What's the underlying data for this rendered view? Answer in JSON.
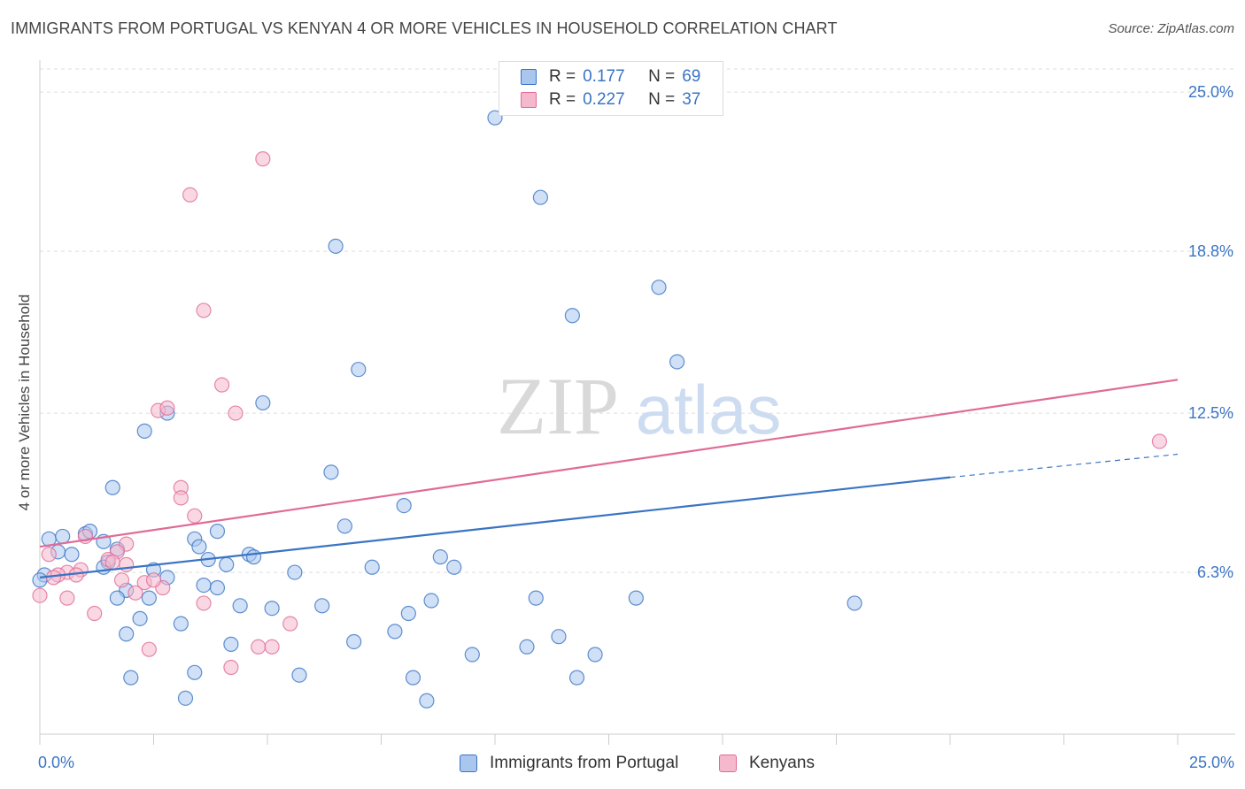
{
  "title": "IMMIGRANTS FROM PORTUGAL VS KENYAN 4 OR MORE VEHICLES IN HOUSEHOLD CORRELATION CHART",
  "source": "Source: ZipAtlas.com",
  "watermark": {
    "zip": "ZIP",
    "atlas": "atlas"
  },
  "colors": {
    "blue": "#3a74c4",
    "blue_fill": "#a9c6ef",
    "pink": "#e06b97",
    "pink_fill": "#f6b8cc",
    "grid": "#dddddd"
  },
  "legend": {
    "series": [
      {
        "name": "Immigrants from Portugal",
        "r_label": "R =",
        "r": "0.177",
        "n_label": "N =",
        "n": "69"
      },
      {
        "name": "Kenyans",
        "r_label": "R =",
        "r": "0.227",
        "n_label": "N =",
        "n": "37"
      }
    ]
  },
  "chart_data": {
    "type": "scatter",
    "title": "IMMIGRANTS FROM PORTUGAL VS KENYAN 4 OR MORE VEHICLES IN HOUSEHOLD CORRELATION CHART",
    "xlabel": "",
    "ylabel": "4 or more Vehicles in Household",
    "xlim": [
      0,
      25
    ],
    "ylim": [
      0,
      25.9
    ],
    "x_tick_labels": [
      "0.0%",
      "25.0%"
    ],
    "y_ticks": [
      6.3,
      12.5,
      18.8,
      25.0
    ],
    "y_tick_labels": [
      "6.3%",
      "12.5%",
      "18.8%",
      "25.0%"
    ],
    "grid": true,
    "series": [
      {
        "name": "Immigrants from Portugal",
        "points": [
          [
            10.0,
            24.0
          ],
          [
            11.0,
            20.9
          ],
          [
            6.5,
            19.0
          ],
          [
            13.6,
            17.4
          ],
          [
            11.7,
            16.3
          ],
          [
            14.0,
            14.5
          ],
          [
            7.0,
            14.2
          ],
          [
            4.9,
            12.9
          ],
          [
            2.8,
            12.5
          ],
          [
            2.3,
            11.8
          ],
          [
            6.4,
            10.2
          ],
          [
            1.6,
            9.6
          ],
          [
            8.0,
            8.9
          ],
          [
            6.7,
            8.1
          ],
          [
            0.2,
            7.6
          ],
          [
            0.5,
            7.7
          ],
          [
            1.0,
            7.8
          ],
          [
            1.1,
            7.9
          ],
          [
            3.4,
            7.6
          ],
          [
            3.9,
            7.9
          ],
          [
            1.4,
            7.5
          ],
          [
            3.5,
            7.3
          ],
          [
            1.7,
            7.2
          ],
          [
            0.4,
            7.1
          ],
          [
            0.7,
            7.0
          ],
          [
            4.6,
            7.0
          ],
          [
            4.7,
            6.9
          ],
          [
            8.8,
            6.9
          ],
          [
            1.5,
            6.7
          ],
          [
            3.7,
            6.8
          ],
          [
            4.1,
            6.6
          ],
          [
            1.4,
            6.5
          ],
          [
            7.3,
            6.5
          ],
          [
            9.1,
            6.5
          ],
          [
            2.5,
            6.4
          ],
          [
            5.6,
            6.3
          ],
          [
            0.1,
            6.2
          ],
          [
            2.8,
            6.1
          ],
          [
            3.6,
            5.8
          ],
          [
            3.9,
            5.7
          ],
          [
            1.9,
            5.6
          ],
          [
            2.4,
            5.3
          ],
          [
            1.7,
            5.3
          ],
          [
            8.6,
            5.2
          ],
          [
            10.9,
            5.3
          ],
          [
            13.1,
            5.3
          ],
          [
            17.9,
            5.1
          ],
          [
            4.4,
            5.0
          ],
          [
            6.2,
            5.0
          ],
          [
            5.1,
            4.9
          ],
          [
            8.1,
            4.7
          ],
          [
            2.2,
            4.5
          ],
          [
            3.1,
            4.3
          ],
          [
            1.9,
            3.9
          ],
          [
            7.8,
            4.0
          ],
          [
            11.4,
            3.8
          ],
          [
            6.9,
            3.6
          ],
          [
            4.2,
            3.5
          ],
          [
            10.7,
            3.4
          ],
          [
            9.5,
            3.1
          ],
          [
            12.2,
            3.1
          ],
          [
            3.4,
            2.4
          ],
          [
            5.7,
            2.3
          ],
          [
            2.0,
            2.2
          ],
          [
            8.2,
            2.2
          ],
          [
            11.8,
            2.2
          ],
          [
            3.2,
            1.4
          ],
          [
            8.5,
            1.3
          ],
          [
            0.0,
            6.0
          ]
        ]
      },
      {
        "name": "Kenyans",
        "points": [
          [
            4.9,
            22.4
          ],
          [
            3.3,
            21.0
          ],
          [
            3.6,
            16.5
          ],
          [
            4.0,
            13.6
          ],
          [
            2.6,
            12.6
          ],
          [
            2.8,
            12.7
          ],
          [
            4.3,
            12.5
          ],
          [
            3.1,
            9.6
          ],
          [
            3.1,
            9.2
          ],
          [
            3.4,
            8.5
          ],
          [
            24.6,
            11.4
          ],
          [
            1.0,
            7.7
          ],
          [
            1.9,
            7.4
          ],
          [
            0.2,
            7.0
          ],
          [
            1.7,
            7.1
          ],
          [
            1.5,
            6.8
          ],
          [
            1.6,
            6.7
          ],
          [
            1.9,
            6.6
          ],
          [
            0.9,
            6.4
          ],
          [
            0.6,
            6.3
          ],
          [
            0.4,
            6.2
          ],
          [
            1.8,
            6.0
          ],
          [
            2.3,
            5.9
          ],
          [
            2.7,
            5.7
          ],
          [
            2.1,
            5.5
          ],
          [
            0.6,
            5.3
          ],
          [
            0.0,
            5.4
          ],
          [
            3.6,
            5.1
          ],
          [
            1.2,
            4.7
          ],
          [
            5.5,
            4.3
          ],
          [
            2.4,
            3.3
          ],
          [
            4.8,
            3.4
          ],
          [
            5.1,
            3.4
          ],
          [
            4.2,
            2.6
          ],
          [
            0.3,
            6.1
          ],
          [
            2.5,
            6.0
          ],
          [
            0.8,
            6.2
          ]
        ]
      }
    ],
    "trend_lines": [
      {
        "series": "Immigrants from Portugal",
        "x0": 0,
        "y0": 6.1,
        "x1": 20,
        "y1": 10.0,
        "x_dash_end": 25,
        "y_dash_end": 10.9
      },
      {
        "series": "Kenyans",
        "x0": 0,
        "y0": 7.3,
        "x1": 25,
        "y1": 13.8
      }
    ]
  }
}
